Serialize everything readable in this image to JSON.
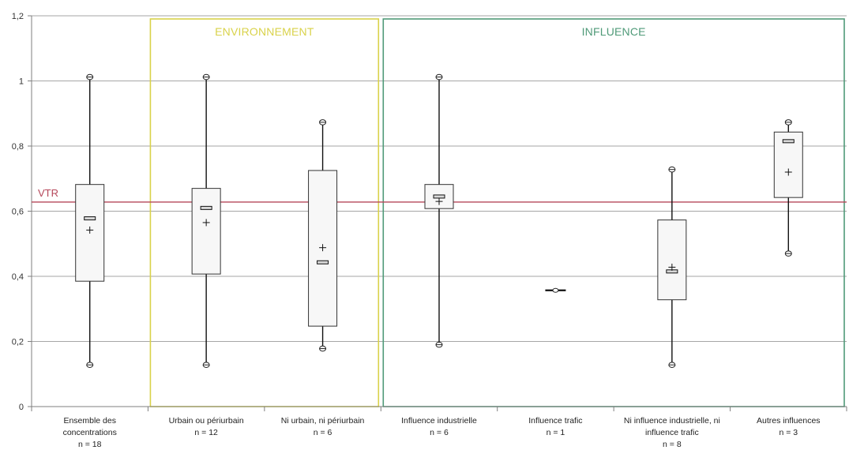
{
  "chart_data": {
    "type": "box",
    "title": "",
    "xlabel": "",
    "ylabel": "",
    "ylim": [
      0,
      1.2
    ],
    "y_ticks": [
      "0",
      "0,2",
      "0,4",
      "0,6",
      "0,8",
      "1",
      "1,2"
    ],
    "grid": true,
    "reference_line": {
      "label": "VTR",
      "value": 0.628,
      "color": "#b5475a"
    },
    "groups": [
      {
        "label": "ENVIRONNEMENT",
        "color": "#d9d24a",
        "categories": [
          1,
          2
        ]
      },
      {
        "label": "INFLUENCE",
        "color": "#4f9a78",
        "categories": [
          3,
          4,
          5,
          6
        ]
      }
    ],
    "categories": [
      {
        "lines": [
          "Ensemble des",
          "concentrations",
          "n = 18"
        ],
        "min": 0.128,
        "q1": 0.385,
        "median": 0.578,
        "q3": 0.682,
        "max": 1.012,
        "mean": 0.542
      },
      {
        "lines": [
          "Urbain ou périurbain",
          "n = 12"
        ],
        "min": 0.128,
        "q1": 0.407,
        "median": 0.61,
        "q3": 0.67,
        "max": 1.012,
        "mean": 0.565
      },
      {
        "lines": [
          "Ni urbain, ni périurbain",
          "n = 6"
        ],
        "min": 0.178,
        "q1": 0.247,
        "median": 0.443,
        "q3": 0.725,
        "max": 0.873,
        "mean": 0.488
      },
      {
        "lines": [
          "Influence industrielle",
          "n = 6"
        ],
        "min": 0.19,
        "q1": 0.608,
        "median": 0.645,
        "q3": 0.682,
        "max": 1.012,
        "mean": 0.63
      },
      {
        "lines": [
          "Influence trafic",
          "n = 1"
        ],
        "min": 0.357,
        "q1": 0.357,
        "median": 0.357,
        "q3": 0.357,
        "max": 0.357,
        "mean": 0.357
      },
      {
        "lines": [
          "Ni influence industrielle, ni",
          "influence trafic",
          "n = 8"
        ],
        "min": 0.128,
        "q1": 0.328,
        "median": 0.415,
        "q3": 0.573,
        "max": 0.728,
        "mean": 0.428
      },
      {
        "lines": [
          "Autres influences",
          "n = 3"
        ],
        "min": 0.47,
        "q1": 0.642,
        "median": 0.815,
        "q3": 0.843,
        "max": 0.873,
        "mean": 0.72
      }
    ]
  }
}
